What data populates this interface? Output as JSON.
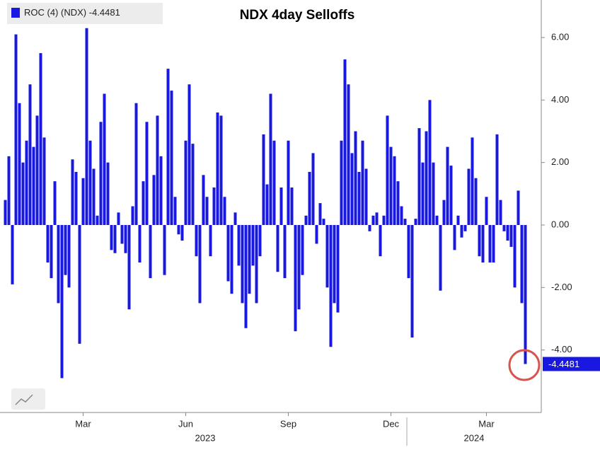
{
  "chart_data": {
    "type": "bar",
    "title": "NDX 4day Selloffs",
    "series": [
      {
        "name": "ROC (4) (NDX)",
        "color": "#1818e0",
        "values": [
          0.8,
          2.2,
          -1.9,
          6.1,
          3.9,
          2.0,
          2.7,
          4.5,
          2.5,
          3.5,
          5.5,
          2.8,
          -1.2,
          -1.7,
          1.4,
          -2.5,
          -4.9,
          -1.6,
          -2.0,
          2.1,
          1.7,
          -3.8,
          1.5,
          6.3,
          2.7,
          1.8,
          0.3,
          3.3,
          4.2,
          2.0,
          -0.8,
          -0.9,
          0.4,
          -0.6,
          -0.9,
          -2.7,
          0.6,
          3.9,
          -1.2,
          1.4,
          3.3,
          -1.7,
          1.6,
          3.5,
          2.2,
          -1.6,
          5.0,
          4.3,
          0.9,
          -0.3,
          -0.5,
          2.7,
          4.5,
          2.6,
          -1.0,
          -2.5,
          1.6,
          0.9,
          -1.0,
          1.2,
          3.6,
          3.5,
          0.9,
          -1.8,
          -2.2,
          0.4,
          -1.3,
          -2.5,
          -3.3,
          -2.2,
          -1.3,
          -2.5,
          -1.0,
          2.9,
          1.3,
          4.2,
          2.7,
          -1.5,
          1.2,
          -1.7,
          2.7,
          1.2,
          -3.4,
          -2.7,
          -1.6,
          0.3,
          1.7,
          2.3,
          -0.6,
          0.7,
          0.2,
          -2.0,
          -3.9,
          -2.5,
          -2.8,
          2.7,
          5.3,
          4.5,
          2.3,
          3.0,
          1.7,
          2.7,
          1.8,
          -0.2,
          0.3,
          0.4,
          -1.0,
          0.3,
          3.5,
          2.5,
          2.2,
          1.4,
          0.6,
          0.2,
          -1.7,
          -3.6,
          0.2,
          3.1,
          2.0,
          3.0,
          4.0,
          2.0,
          0.3,
          -2.1,
          0.8,
          2.5,
          1.9,
          -0.8,
          0.3,
          -0.4,
          -0.2,
          1.8,
          2.8,
          1.5,
          -1.0,
          -1.2,
          0.9,
          -1.2,
          -1.2,
          2.9,
          0.8,
          -0.2,
          -0.5,
          -0.7,
          -2.0,
          1.1,
          -2.5,
          -4.4481
        ]
      }
    ],
    "categories": [
      null,
      null,
      null,
      null,
      null,
      null,
      null,
      null,
      null,
      null,
      null,
      null,
      null,
      null,
      null,
      null,
      null,
      null,
      null,
      null,
      null,
      null,
      "Mar",
      null,
      null,
      null,
      null,
      null,
      null,
      null,
      null,
      null,
      null,
      null,
      null,
      null,
      null,
      null,
      null,
      null,
      null,
      null,
      null,
      null,
      null,
      null,
      null,
      null,
      null,
      null,
      null,
      "Jun",
      null,
      null,
      null,
      null,
      null,
      null,
      null,
      null,
      null,
      null,
      null,
      null,
      null,
      null,
      null,
      null,
      null,
      null,
      null,
      null,
      null,
      null,
      null,
      null,
      null,
      null,
      null,
      null,
      "Sep",
      null,
      null,
      null,
      null,
      null,
      null,
      null,
      null,
      null,
      null,
      null,
      null,
      null,
      null,
      null,
      null,
      null,
      null,
      null,
      null,
      null,
      null,
      null,
      null,
      null,
      null,
      null,
      null,
      "Dec",
      null,
      null,
      null,
      null,
      null,
      null,
      null,
      null,
      null,
      null,
      null,
      null,
      null,
      null,
      null,
      null,
      null,
      null,
      null,
      null,
      null,
      null,
      null,
      null,
      null,
      null,
      "Mar",
      null,
      null,
      null,
      null,
      null,
      null,
      null,
      null,
      null,
      null,
      null
    ],
    "years": [
      "2023",
      "2024"
    ],
    "ylim": [
      -6,
      7.2
    ],
    "yticks": [
      {
        "value": 6,
        "label": "6.00"
      },
      {
        "value": 4,
        "label": "4.00"
      },
      {
        "value": 2,
        "label": "2.00"
      },
      {
        "value": 0,
        "label": "0.00"
      },
      {
        "value": -2,
        "label": "-2.00"
      },
      {
        "value": -4,
        "label": "-4.00"
      }
    ],
    "y_axis_side": "right",
    "grid": false
  }
}
